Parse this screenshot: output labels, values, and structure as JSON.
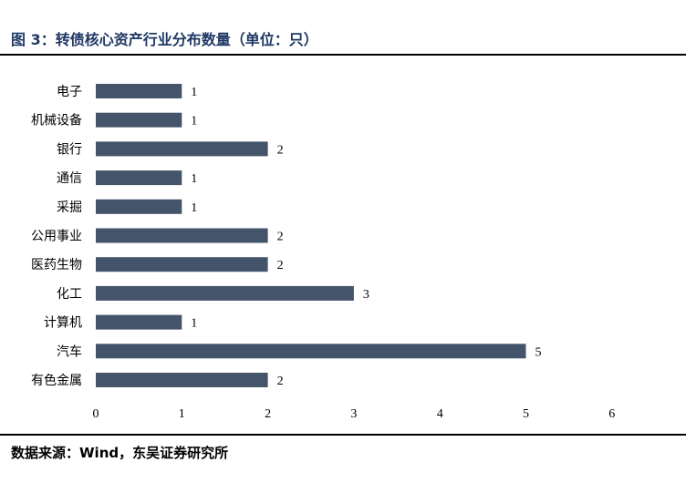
{
  "figure": {
    "title": "图 3：转债核心资产行业分布数量（单位：只）",
    "source": "数据来源：Wind，东吴证券研究所"
  },
  "chart_data": {
    "type": "bar",
    "orientation": "horizontal",
    "categories": [
      "电子",
      "机械设备",
      "银行",
      "通信",
      "采掘",
      "公用事业",
      "医药生物",
      "化工",
      "计算机",
      "汽车",
      "有色金属"
    ],
    "values": [
      1,
      1,
      2,
      1,
      1,
      2,
      2,
      3,
      1,
      5,
      2
    ],
    "xlim": [
      0,
      6
    ],
    "xticks": [
      0,
      1,
      2,
      3,
      4,
      5,
      6
    ],
    "bar_color": "#44546a",
    "grid": false,
    "legend": "none"
  }
}
